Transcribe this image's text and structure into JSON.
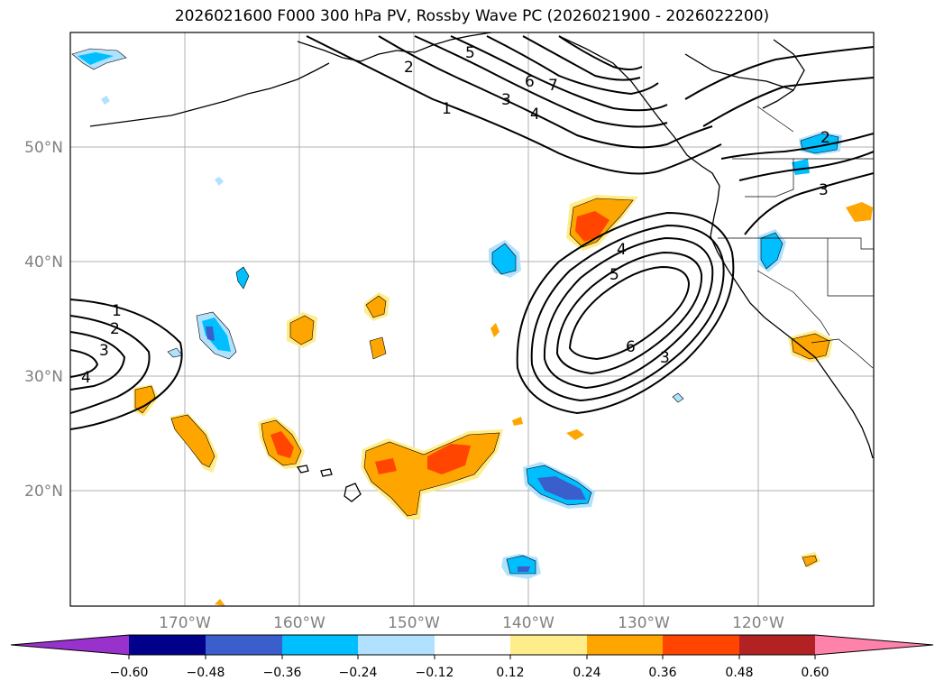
{
  "title": "2026021600 F000 300 hPa PV, Rossby Wave PC (2026021900 - 2026022200)",
  "lat_labels": [
    "50°N",
    "40°N",
    "30°N",
    "20°N"
  ],
  "lon_labels": [
    "170°W",
    "160°W",
    "150°W",
    "140°W",
    "130°W",
    "120°W"
  ],
  "colorbar": {
    "tick_labels": [
      "−0.60",
      "−0.48",
      "−0.36",
      "−0.24",
      "−0.12",
      "0.12",
      "0.24",
      "0.36",
      "0.48",
      "0.60"
    ],
    "colors": [
      "#9932cc",
      "#00008b",
      "#3a5fcd",
      "#00bfff",
      "#b0e2ff",
      "#ffffff",
      "#ffec8b",
      "#ffa500",
      "#ff4500",
      "#b22222",
      "#ff82ab"
    ]
  },
  "contour_labels": [
    "1",
    "2",
    "3",
    "4",
    "5",
    "6",
    "7",
    "1",
    "2",
    "3",
    "4",
    "4",
    "5",
    "6",
    "3",
    "2",
    "3"
  ]
}
